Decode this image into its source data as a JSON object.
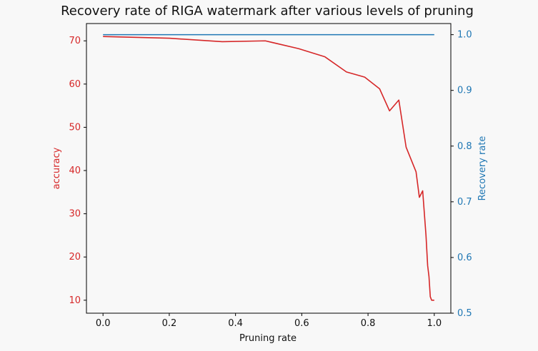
{
  "chart_data": {
    "type": "line",
    "title": "Recovery rate of RIGA watermark after various levels of pruning",
    "xlabel": "Pruning rate",
    "ylabel_left": "accuracy",
    "ylabel_right": "Recovery rate",
    "xlim": [
      -0.05,
      1.05
    ],
    "ylim_left": [
      7,
      74
    ],
    "ylim_right": [
      0.5,
      1.02
    ],
    "x_ticks": [
      "0.0",
      "0.2",
      "0.4",
      "0.6",
      "0.8",
      "1.0"
    ],
    "y_left_ticks": [
      "10",
      "20",
      "30",
      "40",
      "50",
      "60",
      "70"
    ],
    "y_right_ticks": [
      "0.5",
      "0.6",
      "0.7",
      "0.8",
      "0.9",
      "1.0"
    ],
    "colors": {
      "accuracy": "#d62728",
      "recovery": "#1f77b4"
    },
    "series": [
      {
        "axis": "left",
        "x": [
          0.0,
          0.2,
          0.36,
          0.49,
          0.59,
          0.67,
          0.735,
          0.79,
          0.835,
          0.865,
          0.893,
          0.915,
          0.945,
          0.955,
          0.965,
          0.975,
          0.98,
          0.984,
          0.988,
          0.992,
          1.0
        ],
        "y": [
          71.0,
          70.6,
          69.8,
          70.0,
          68.2,
          66.3,
          62.8,
          61.6,
          58.9,
          53.8,
          56.3,
          45.4,
          39.7,
          33.8,
          35.3,
          25.0,
          18.0,
          15.5,
          10.8,
          10.0,
          10.0
        ]
      },
      {
        "axis": "right",
        "x": [
          0.0,
          1.0
        ],
        "y": [
          1.0,
          1.0
        ]
      }
    ],
    "grid": false
  }
}
